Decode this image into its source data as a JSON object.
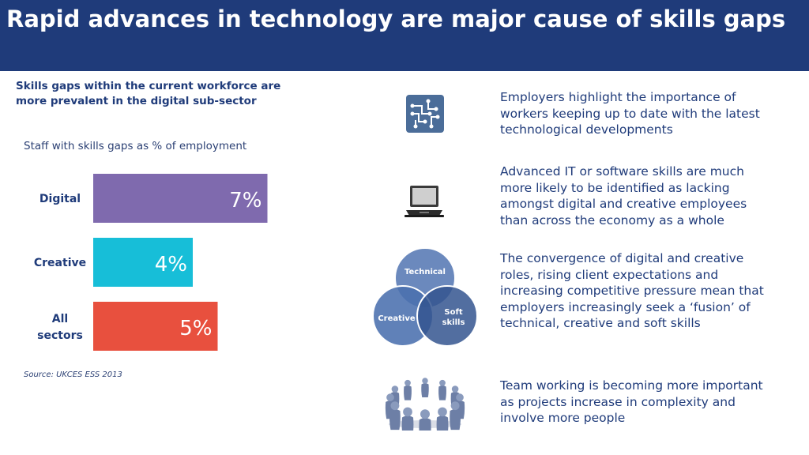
{
  "header": {
    "title": "Rapid advances in technology are major cause of skills gaps"
  },
  "subtitle": "Skills gaps within the current workforce are more prevalent in the digital sub-sector",
  "chart_caption": "Staff with skills gaps as % of employment",
  "source": "Source: UKCES ESS 2013",
  "chart_data": {
    "type": "bar",
    "orientation": "horizontal",
    "title": "Staff with skills gaps as % of employment",
    "categories": [
      "Digital",
      "Creative",
      "All sectors"
    ],
    "values": [
      7,
      4,
      5
    ],
    "data_labels": [
      "7%",
      "4%",
      "5%"
    ],
    "colors": [
      "#7f6aae",
      "#17bed8",
      "#e8503e"
    ],
    "grid": false,
    "legend": "none"
  },
  "venn": {
    "labels": [
      "Technical",
      "Creative",
      "Soft skills"
    ],
    "colors": [
      "#5e7fb7",
      "#4a6fae",
      "#34558f"
    ]
  },
  "points": [
    {
      "icon": "circuit-icon",
      "text": "Employers highlight the importance of workers keeping up to date with the latest technological developments"
    },
    {
      "icon": "laptop-icon",
      "text": "Advanced IT or software skills are much more likely to be identified as lacking amongst digital and creative employees than across the economy as a whole"
    },
    {
      "icon": "venn-diagram",
      "text": "The convergence of digital and creative roles, rising client expectations and increasing competitive pressure mean that employers increasingly seek a ‘fusion’ of technical, creative and soft skills"
    },
    {
      "icon": "team-circle-icon",
      "text": "Team working is becoming more important as projects increase in complexity and involve more people"
    }
  ]
}
